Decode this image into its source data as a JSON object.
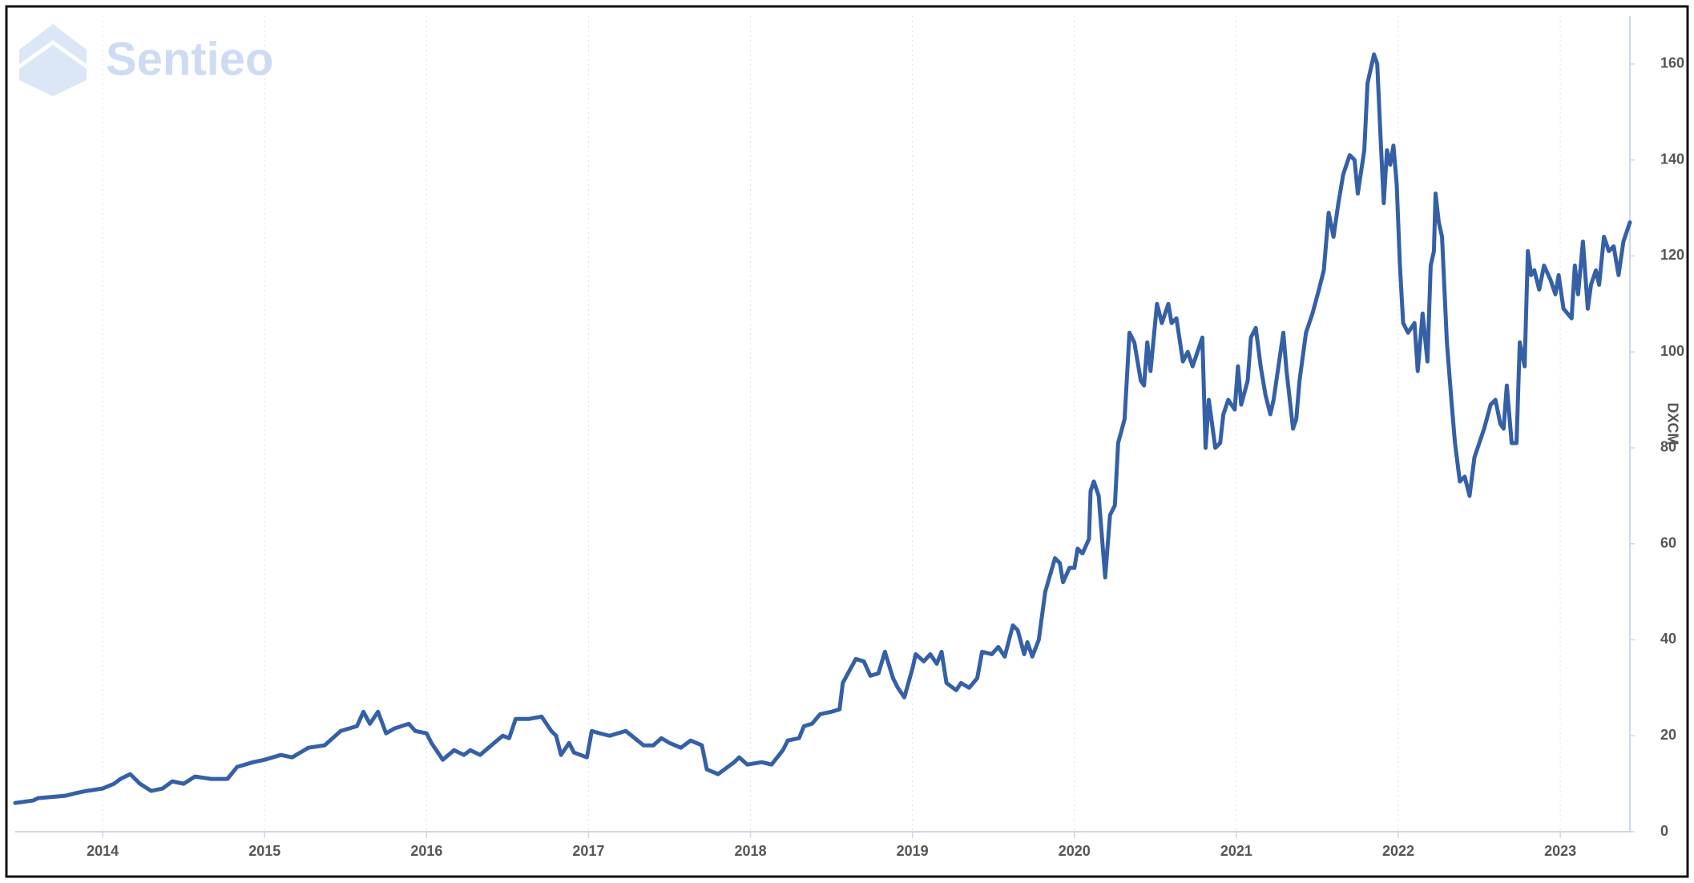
{
  "chart_data": {
    "type": "line",
    "watermark": "Sentieo",
    "y_label": "DXCM",
    "color": "#3560a6",
    "grid": "x",
    "xlim": [
      2013.46,
      2023.43
    ],
    "xticks": [
      2014,
      2015,
      2016,
      2017,
      2018,
      2019,
      2020,
      2021,
      2022,
      2023
    ],
    "ylim": [
      0,
      170
    ],
    "yticks": [
      0,
      20,
      40,
      60,
      80,
      100,
      120,
      140,
      160
    ],
    "x": [
      2013.46,
      2013.57,
      2013.6,
      2013.77,
      2013.83,
      2013.9,
      2014.0,
      2014.07,
      2014.11,
      2014.17,
      2014.23,
      2014.3,
      2014.37,
      2014.43,
      2014.5,
      2014.57,
      2014.67,
      2014.77,
      2014.83,
      2014.93,
      2015.0,
      2015.1,
      2015.17,
      2015.27,
      2015.37,
      2015.47,
      2015.57,
      2015.61,
      2015.65,
      2015.7,
      2015.75,
      2015.8,
      2015.89,
      2015.93,
      2016.0,
      2016.03,
      2016.1,
      2016.17,
      2016.23,
      2016.27,
      2016.33,
      2016.4,
      2016.47,
      2016.51,
      2016.55,
      2016.63,
      2016.71,
      2016.77,
      2016.8,
      2016.83,
      2016.88,
      2016.91,
      2016.99,
      2017.02,
      2017.07,
      2017.13,
      2017.23,
      2017.34,
      2017.4,
      2017.45,
      2017.5,
      2017.57,
      2017.63,
      2017.7,
      2017.73,
      2017.8,
      2017.9,
      2017.93,
      2017.98,
      2018.07,
      2018.13,
      2018.2,
      2018.23,
      2018.3,
      2018.33,
      2018.38,
      2018.43,
      2018.5,
      2018.55,
      2018.57,
      2018.65,
      2018.7,
      2018.74,
      2018.79,
      2018.83,
      2018.88,
      2018.91,
      2018.95,
      2019.0,
      2019.02,
      2019.07,
      2019.11,
      2019.15,
      2019.18,
      2019.21,
      2019.27,
      2019.3,
      2019.35,
      2019.4,
      2019.43,
      2019.49,
      2019.53,
      2019.57,
      2019.62,
      2019.65,
      2019.69,
      2019.71,
      2019.74,
      2019.78,
      2019.82,
      2019.88,
      2019.91,
      2019.93,
      2019.97,
      2020.0,
      2020.02,
      2020.05,
      2020.09,
      2020.1,
      2020.12,
      2020.15,
      2020.19,
      2020.22,
      2020.25,
      2020.27,
      2020.31,
      2020.34,
      2020.37,
      2020.41,
      2020.43,
      2020.45,
      2020.47,
      2020.51,
      2020.54,
      2020.58,
      2020.6,
      2020.63,
      2020.67,
      2020.7,
      2020.73,
      2020.79,
      2020.81,
      2020.83,
      2020.87,
      2020.9,
      2020.92,
      2020.95,
      2020.99,
      2021.01,
      2021.03,
      2021.07,
      2021.09,
      2021.12,
      2021.15,
      2021.18,
      2021.21,
      2021.23,
      2021.29,
      2021.31,
      2021.35,
      2021.37,
      2021.39,
      2021.43,
      2021.47,
      2021.51,
      2021.54,
      2021.57,
      2021.6,
      2021.63,
      2021.66,
      2021.7,
      2021.73,
      2021.75,
      2021.79,
      2021.81,
      2021.85,
      2021.87,
      2021.89,
      2021.91,
      2021.93,
      2021.95,
      2021.97,
      2021.99,
      2022.01,
      2022.03,
      2022.06,
      2022.1,
      2022.12,
      2022.15,
      2022.18,
      2022.2,
      2022.22,
      2022.23,
      2022.25,
      2022.27,
      2022.3,
      2022.33,
      2022.35,
      2022.38,
      2022.41,
      2022.44,
      2022.47,
      2022.5,
      2022.53,
      2022.57,
      2022.6,
      2022.63,
      2022.65,
      2022.67,
      2022.7,
      2022.73,
      2022.75,
      2022.78,
      2022.8,
      2022.82,
      2022.84,
      2022.87,
      2022.9,
      2022.94,
      2022.97,
      2022.99,
      2023.02,
      2023.07,
      2023.09,
      2023.11,
      2023.14,
      2023.17,
      2023.19,
      2023.22,
      2023.24,
      2023.27,
      2023.3,
      2023.33,
      2023.36,
      2023.39,
      2023.43
    ],
    "values": [
      6,
      6.5,
      7,
      7.5,
      8,
      8.5,
      9,
      10,
      11,
      12,
      10,
      8.5,
      9,
      10.5,
      10,
      11.5,
      11,
      11,
      13.5,
      14.5,
      15,
      16,
      15.5,
      17.5,
      18,
      21,
      22,
      25,
      22.5,
      25,
      20.5,
      21.5,
      22.5,
      21,
      20.5,
      18.5,
      15,
      17,
      16,
      17,
      16,
      18,
      20,
      19.5,
      23.5,
      23.5,
      24,
      21,
      20,
      16,
      18.5,
      16.5,
      15.5,
      21,
      20.5,
      20,
      21,
      18,
      18,
      19.5,
      18.5,
      17.5,
      19,
      18,
      13,
      12,
      14.5,
      15.5,
      14,
      14.5,
      14,
      17,
      19,
      19.5,
      22,
      22.5,
      24.5,
      25,
      25.5,
      31,
      36,
      35.5,
      32.5,
      33,
      37.5,
      32,
      30,
      28,
      34,
      37,
      35.5,
      37,
      35,
      37.5,
      31,
      29.5,
      31,
      30,
      32,
      37.5,
      37,
      38.5,
      36.5,
      43,
      42,
      37,
      39.5,
      36.5,
      40,
      50,
      57,
      56,
      52,
      55,
      55,
      59,
      58,
      61,
      71,
      73,
      70,
      53,
      66,
      68,
      81,
      86,
      104,
      102,
      94,
      93,
      102,
      96,
      110,
      106,
      110,
      106,
      107,
      98,
      100,
      97,
      103,
      80,
      90,
      80,
      81,
      87,
      90,
      88,
      97,
      89,
      94,
      103,
      105,
      97,
      91,
      87,
      90,
      104,
      96,
      84,
      86,
      94,
      104,
      108,
      113,
      117,
      129,
      124,
      131,
      137,
      141,
      140,
      133,
      142,
      156,
      162,
      160,
      145,
      131,
      142,
      139,
      143,
      135,
      118,
      106,
      104,
      106,
      96,
      108,
      98,
      118,
      121,
      133,
      127,
      124,
      102,
      89,
      81,
      73,
      74,
      70,
      78,
      81,
      84,
      89,
      90,
      85,
      84,
      93,
      81,
      81,
      102,
      97,
      121,
      116,
      117,
      113,
      118,
      115,
      112,
      116,
      109,
      107,
      118,
      112,
      123,
      109,
      114,
      117,
      114,
      124,
      121,
      122,
      116,
      123,
      127
    ]
  }
}
